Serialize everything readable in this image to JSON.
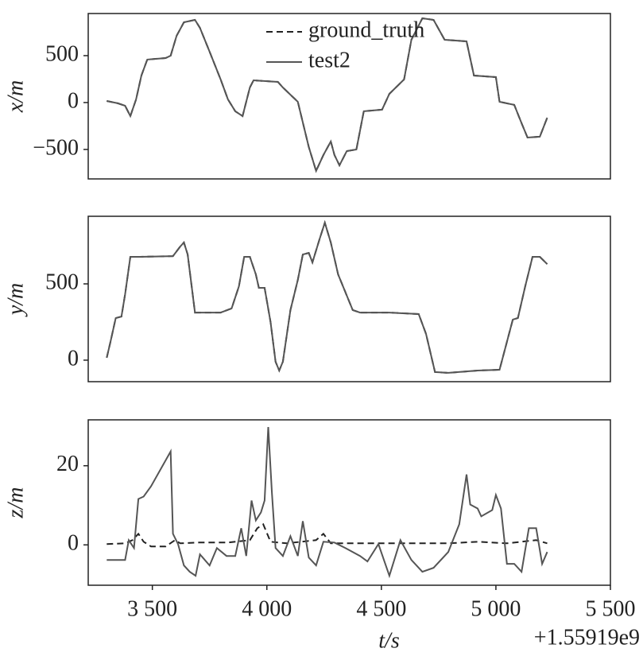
{
  "chart_data": [
    {
      "type": "line",
      "ylabel": "x/m",
      "legend": "upper center",
      "ylim": [
        -814,
        949
      ],
      "yticks": [
        {
          "value": -500,
          "label": "−500"
        },
        0,
        500
      ],
      "xlim": [
        3220,
        5500
      ],
      "x": [
        3301,
        3349,
        3381,
        3404,
        3429,
        3452,
        3478,
        3558,
        3580,
        3606,
        3638,
        3686,
        3708,
        3750,
        3798,
        3830,
        3862,
        3894,
        3926,
        3942,
        4048,
        4070,
        4135,
        4183,
        4215,
        4247,
        4279,
        4295,
        4317,
        4349,
        4391,
        4423,
        4503,
        4535,
        4599,
        4631,
        4679,
        4728,
        4776,
        4872,
        4904,
        5000,
        5016,
        5080,
        5112,
        5138,
        5192,
        5224
      ],
      "series": [
        {
          "name": "ground_truth",
          "color": "#222222",
          "linestyle": "dashed",
          "values": [
            17,
            -8,
            -34,
            -144,
            34,
            288,
            458,
            474,
            500,
            712,
            856,
            881,
            796,
            542,
            246,
            34,
            -93,
            -144,
            161,
            237,
            220,
            161,
            8,
            -474,
            -728,
            -559,
            -415,
            -559,
            -669,
            -517,
            -500,
            -93,
            -76,
            93,
            246,
            669,
            898,
            881,
            669,
            652,
            288,
            271,
            8,
            -25,
            -220,
            -373,
            -364,
            -161
          ]
        },
        {
          "name": "test2",
          "color": "#555555",
          "linestyle": "solid",
          "values": [
            17,
            -8,
            -34,
            -144,
            34,
            288,
            458,
            474,
            500,
            712,
            856,
            881,
            796,
            542,
            246,
            34,
            -93,
            -144,
            161,
            237,
            220,
            161,
            8,
            -474,
            -728,
            -559,
            -415,
            -559,
            -669,
            -517,
            -500,
            -93,
            -76,
            93,
            246,
            669,
            898,
            881,
            669,
            652,
            288,
            271,
            8,
            -25,
            -220,
            -373,
            -364,
            -161
          ]
        }
      ]
    },
    {
      "type": "line",
      "ylabel": "y/m",
      "ylim": [
        -141,
        943
      ],
      "yticks": [
        0,
        500
      ],
      "xlim": [
        3220,
        5500
      ],
      "x": [
        3301,
        3317,
        3340,
        3365,
        3381,
        3404,
        3446,
        3590,
        3622,
        3638,
        3654,
        3686,
        3718,
        3798,
        3846,
        3878,
        3901,
        3926,
        3952,
        3965,
        3990,
        4016,
        4038,
        4054,
        4070,
        4103,
        4135,
        4157,
        4183,
        4199,
        4231,
        4253,
        4279,
        4311,
        4375,
        4407,
        4535,
        4663,
        4695,
        4734,
        4792,
        4920,
        5016,
        5048,
        5074,
        5096,
        5128,
        5160,
        5192,
        5224
      ],
      "series": [
        {
          "name": "ground_truth",
          "color": "#222222",
          "linestyle": "dashed",
          "values": [
            16,
            120,
            276,
            286,
            432,
            677,
            677,
            682,
            745,
            771,
            693,
            312,
            312,
            312,
            339,
            484,
            677,
            677,
            562,
            474,
            474,
            250,
            -10,
            -68,
            -10,
            328,
            526,
            693,
            703,
            641,
            797,
            901,
            771,
            562,
            328,
            312,
            312,
            302,
            172,
            -78,
            -83,
            -68,
            -63,
            120,
            266,
            276,
            484,
            677,
            677,
            630
          ]
        },
        {
          "name": "test2",
          "color": "#555555",
          "linestyle": "solid",
          "values": [
            16,
            120,
            276,
            286,
            432,
            677,
            677,
            682,
            745,
            771,
            693,
            312,
            312,
            312,
            339,
            484,
            677,
            677,
            562,
            474,
            474,
            250,
            -10,
            -68,
            -10,
            328,
            526,
            693,
            703,
            641,
            797,
            901,
            771,
            562,
            328,
            312,
            312,
            302,
            172,
            -78,
            -83,
            -68,
            -63,
            120,
            266,
            276,
            484,
            677,
            677,
            630
          ]
        }
      ]
    },
    {
      "type": "line",
      "ylabel": "z/m",
      "xlabel": "t/s",
      "x_offset": "+1.55919e9",
      "ylim": [
        -10.2,
        31.6
      ],
      "yticks": [
        0,
        20
      ],
      "xlim": [
        3220,
        5500
      ],
      "xticks": [
        {
          "value": 3500,
          "label": "3 500"
        },
        {
          "value": 4000,
          "label": "4 000"
        },
        {
          "value": 4500,
          "label": "4 500"
        },
        {
          "value": 5000,
          "label": "5 000"
        },
        {
          "value": 5500,
          "label": "5 500"
        }
      ],
      "series": [
        {
          "name": "ground_truth",
          "color": "#222222",
          "linestyle": "dashed",
          "x": [
            3301,
            3381,
            3413,
            3439,
            3462,
            3494,
            3558,
            3599,
            3622,
            3702,
            3830,
            3926,
            3958,
            3984,
            4016,
            4087,
            4215,
            4247,
            4279,
            4471,
            4663,
            4792,
            4920,
            5048,
            5176,
            5224
          ],
          "values": [
            0.2,
            0.4,
            1.2,
            2.8,
            0.8,
            -0.4,
            -0.4,
            1.2,
            0.4,
            0.6,
            0.6,
            1.2,
            4.2,
            5.2,
            0.8,
            0.4,
            1.2,
            2.8,
            0.4,
            0.4,
            0.4,
            0.4,
            0.8,
            0.4,
            1.2,
            0.4
          ]
        },
        {
          "name": "test2",
          "color": "#555555",
          "linestyle": "solid",
          "x": [
            3301,
            3333,
            3381,
            3397,
            3420,
            3439,
            3462,
            3494,
            3580,
            3590,
            3612,
            3638,
            3663,
            3689,
            3708,
            3750,
            3782,
            3824,
            3862,
            3888,
            3910,
            3933,
            3952,
            3974,
            3990,
            4006,
            4022,
            4038,
            4070,
            4103,
            4135,
            4157,
            4183,
            4215,
            4247,
            4295,
            4343,
            4407,
            4439,
            4487,
            4535,
            4583,
            4631,
            4679,
            4728,
            4792,
            4840,
            4872,
            4888,
            4920,
            4936,
            4984,
            5000,
            5022,
            5048,
            5080,
            5112,
            5144,
            5176,
            5202,
            5224
          ],
          "values": [
            -3.8,
            -3.8,
            -3.8,
            1.2,
            -0.8,
            11.6,
            12.2,
            14.8,
            23.6,
            2.8,
            0.2,
            -5.2,
            -6.8,
            -7.8,
            -2.4,
            -5.2,
            -0.8,
            -2.8,
            -2.8,
            4.2,
            -2.8,
            11.2,
            6.2,
            8.2,
            11.2,
            29.8,
            13.2,
            -0.8,
            -2.8,
            2.2,
            -2.8,
            6,
            -3.2,
            -5.2,
            0.8,
            0.6,
            -0.8,
            -2.8,
            -4.2,
            0.2,
            -7.8,
            1.2,
            -3.8,
            -6.8,
            -5.8,
            -1.8,
            5.2,
            17.8,
            10.2,
            9.2,
            7.2,
            8.8,
            12.6,
            9.2,
            -4.8,
            -4.8,
            -6.8,
            4.2,
            4.2,
            -4.8,
            -1.8
          ]
        }
      ]
    }
  ]
}
